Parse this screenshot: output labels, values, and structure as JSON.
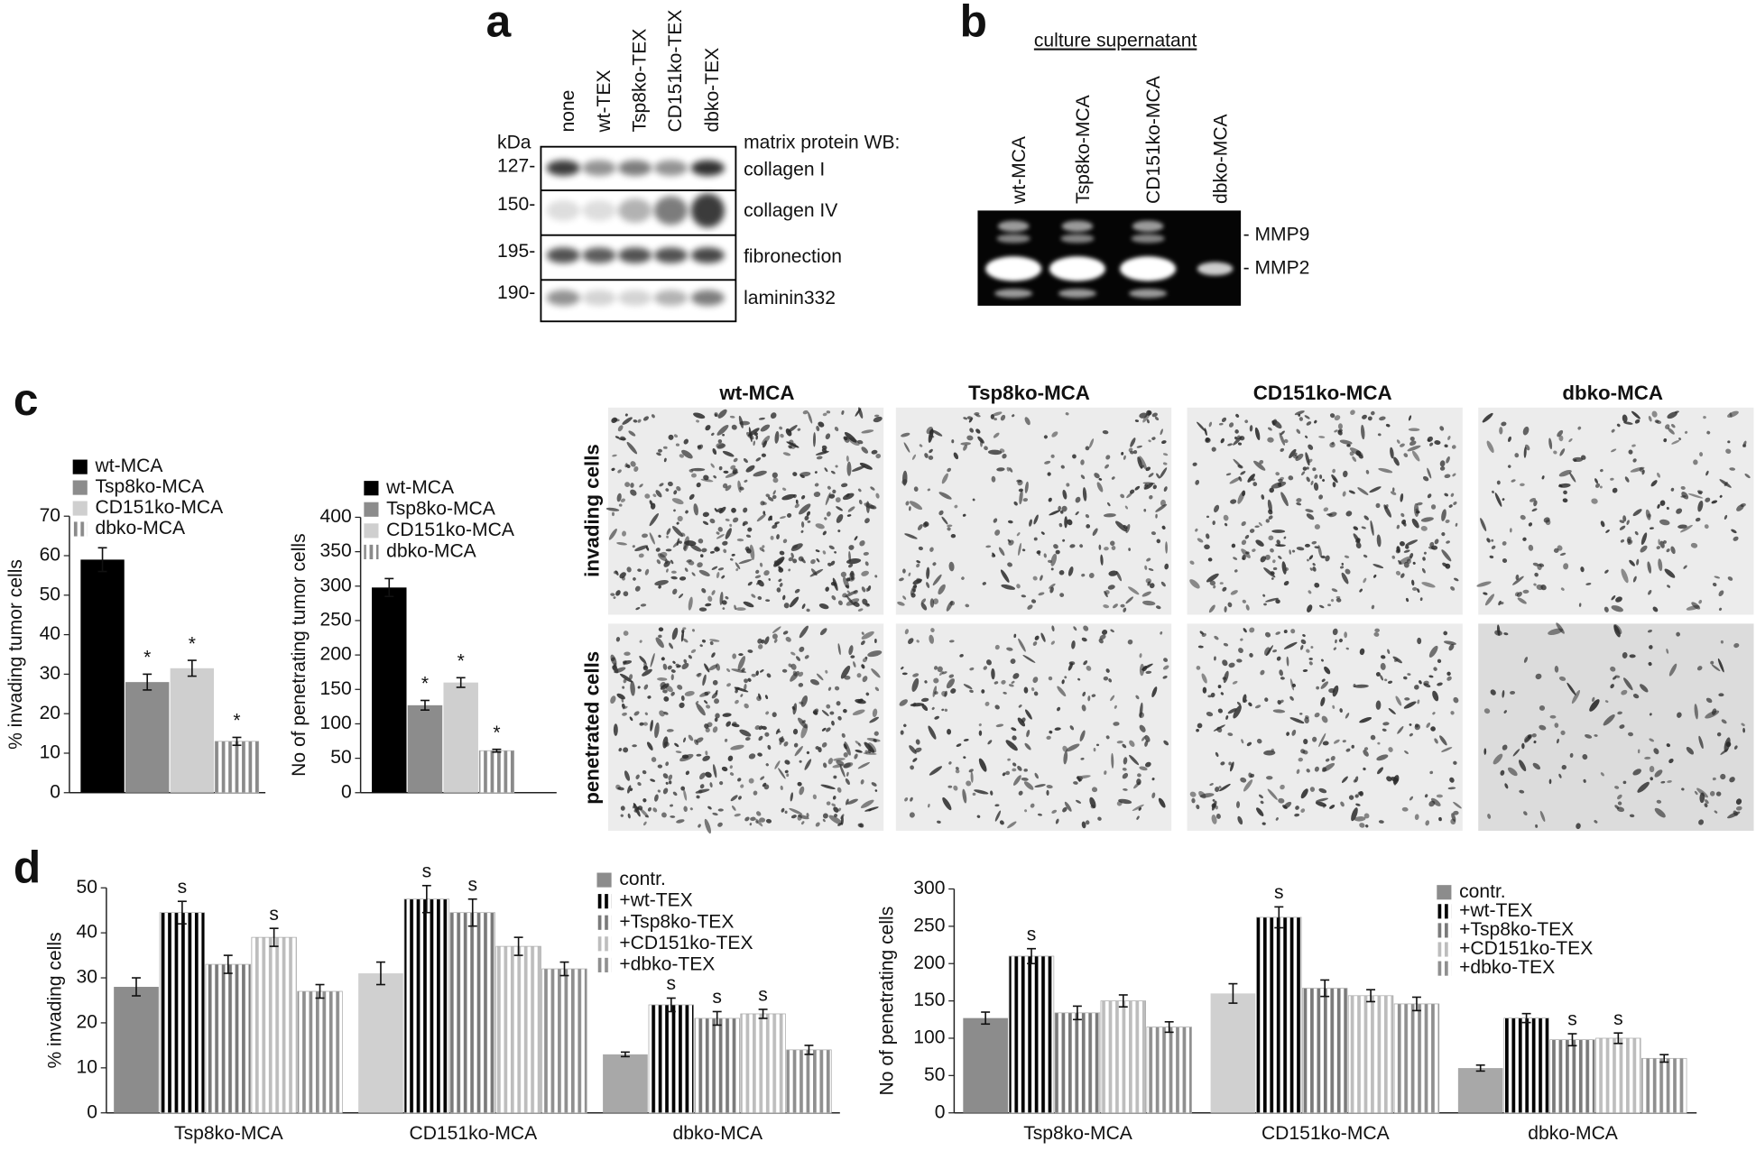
{
  "panel_a": {
    "label": "a",
    "lanes": [
      "none",
      "wt-TEX",
      "Tsp8ko-TEX",
      "CD151ko-TEX",
      "dbko-TEX"
    ],
    "kda": "kDa",
    "markers": [
      "127-",
      "150-",
      "195-",
      "190-"
    ],
    "heading": "matrix protein WB:",
    "rows": [
      "collagen I",
      "collagen IV",
      "fibronection",
      "laminin332"
    ]
  },
  "panel_b": {
    "label": "b",
    "title": "culture supernatant",
    "lanes": [
      "wt-MCA",
      "Tsp8ko-MCA",
      "CD151ko-MCA",
      "dbko-MCA"
    ],
    "bands": [
      "- MMP9",
      "- MMP2"
    ]
  },
  "panel_c": {
    "label": "c",
    "columns": [
      "wt-MCA",
      "Tsp8ko-MCA",
      "CD151ko-MCA",
      "dbko-MCA"
    ],
    "rows": [
      "invading cells",
      "penetrated cells"
    ]
  },
  "panel_d": {
    "label": "d"
  },
  "chart_data": [
    {
      "type": "bar",
      "ylabel": "% invading tumor cells",
      "ylim": [
        0,
        70
      ],
      "yticks": [
        0,
        10,
        20,
        30,
        40,
        50,
        60,
        70
      ],
      "legend": "top-left",
      "series": [
        {
          "name": "wt-MCA",
          "color": "#000000",
          "values": [
            59
          ],
          "errors": [
            3
          ]
        },
        {
          "name": "Tsp8ko-MCA",
          "color": "#8c8c8c",
          "values": [
            28
          ],
          "errors": [
            2
          ],
          "significance": [
            "*"
          ]
        },
        {
          "name": "CD151ko-MCA",
          "color": "#cfcfcf",
          "values": [
            31.5
          ],
          "errors": [
            2
          ],
          "significance": [
            "*"
          ]
        },
        {
          "name": "dbko-MCA",
          "color": "#8a8a8a",
          "pattern": true,
          "values": [
            13
          ],
          "errors": [
            1
          ],
          "significance": [
            "*"
          ]
        }
      ]
    },
    {
      "type": "bar",
      "ylabel": "No of penetrating tumor cells",
      "ylim": [
        0,
        400
      ],
      "yticks": [
        0,
        50,
        100,
        150,
        200,
        250,
        300,
        350,
        400
      ],
      "legend": "top-left",
      "series": [
        {
          "name": "wt-MCA",
          "color": "#000000",
          "values": [
            298
          ],
          "errors": [
            13
          ]
        },
        {
          "name": "Tsp8ko-MCA",
          "color": "#8c8c8c",
          "values": [
            127
          ],
          "errors": [
            7
          ],
          "significance": [
            "*"
          ]
        },
        {
          "name": "CD151ko-MCA",
          "color": "#cfcfcf",
          "values": [
            160
          ],
          "errors": [
            7
          ],
          "significance": [
            "*"
          ]
        },
        {
          "name": "dbko-MCA",
          "color": "#8a8a8a",
          "pattern": true,
          "values": [
            61
          ],
          "errors": [
            2
          ],
          "significance": [
            "*"
          ]
        }
      ]
    },
    {
      "type": "bar",
      "ylabel": "% invading cells",
      "ylim": [
        0,
        50
      ],
      "yticks": [
        0,
        10,
        20,
        30,
        40,
        50
      ],
      "legend": "top-right",
      "categories": [
        "Tsp8ko-MCA",
        "CD151ko-MCA",
        "dbko-MCA"
      ],
      "series": [
        {
          "name": "contr.",
          "color": "#8c8c8c",
          "colors": [
            "#8c8c8c",
            "#d0d0d0",
            "#a8a8a8"
          ],
          "values": [
            28,
            31,
            13
          ],
          "errors": [
            2,
            2.5,
            0.5
          ]
        },
        {
          "name": "+wt-TEX",
          "color": "#000000",
          "pattern": true,
          "values": [
            44.5,
            47.5,
            24
          ],
          "errors": [
            2.5,
            3,
            1.5
          ],
          "significance": [
            "s",
            "s",
            "s"
          ]
        },
        {
          "name": "+Tsp8ko-TEX",
          "color": "#7a7a7a",
          "pattern": true,
          "values": [
            33,
            44.5,
            21
          ],
          "errors": [
            2,
            3,
            1.5
          ],
          "significance": [
            null,
            "s",
            "s"
          ]
        },
        {
          "name": "+CD151ko-TEX",
          "color": "#bdbdbd",
          "pattern": true,
          "values": [
            39,
            37,
            22
          ],
          "errors": [
            2,
            2,
            1
          ],
          "significance": [
            "s",
            null,
            "s"
          ]
        },
        {
          "name": "+dbko-TEX",
          "color": "#8f8f8f",
          "pattern": true,
          "values": [
            27,
            32,
            14
          ],
          "errors": [
            1.5,
            1.5,
            1
          ]
        }
      ]
    },
    {
      "type": "bar",
      "ylabel": "No of penetrating cells",
      "ylim": [
        0,
        300
      ],
      "yticks": [
        0,
        50,
        100,
        150,
        200,
        250,
        300
      ],
      "legend": "top-right",
      "categories": [
        "Tsp8ko-MCA",
        "CD151ko-MCA",
        "dbko-MCA"
      ],
      "series": [
        {
          "name": "contr.",
          "color": "#8c8c8c",
          "colors": [
            "#8c8c8c",
            "#d0d0d0",
            "#a8a8a8"
          ],
          "values": [
            127,
            160,
            60
          ],
          "errors": [
            8,
            13,
            4
          ]
        },
        {
          "name": "+wt-TEX",
          "color": "#000000",
          "pattern": true,
          "values": [
            210,
            262,
            127
          ],
          "errors": [
            10,
            14,
            6
          ],
          "significance": [
            "s",
            "s",
            null
          ]
        },
        {
          "name": "+Tsp8ko-TEX",
          "color": "#7a7a7a",
          "pattern": true,
          "values": [
            134,
            167,
            98
          ],
          "errors": [
            9,
            11,
            8
          ],
          "significance": [
            null,
            null,
            "s"
          ]
        },
        {
          "name": "+CD151ko-TEX",
          "color": "#bdbdbd",
          "pattern": true,
          "values": [
            150,
            157,
            100
          ],
          "errors": [
            8,
            8,
            7
          ],
          "significance": [
            null,
            null,
            "s"
          ]
        },
        {
          "name": "+dbko-TEX",
          "color": "#8f8f8f",
          "pattern": true,
          "values": [
            115,
            146,
            73
          ],
          "errors": [
            7,
            9,
            5
          ]
        }
      ]
    }
  ]
}
